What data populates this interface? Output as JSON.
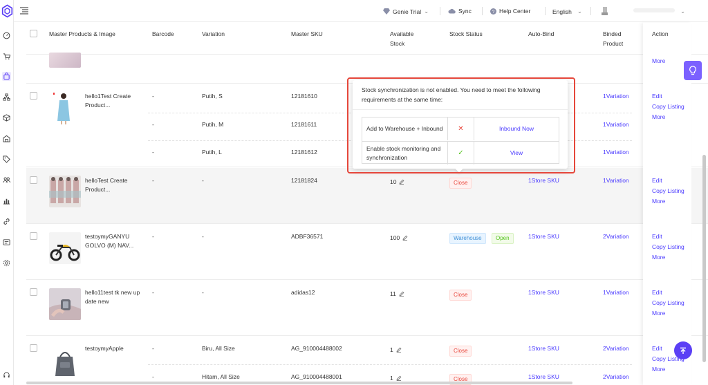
{
  "header": {
    "genie_label": "Genie Trial",
    "sync_label": "Sync",
    "help_label": "Help Center",
    "language": "English"
  },
  "table": {
    "columns": {
      "product": "Master Products & Image",
      "barcode": "Barcode",
      "variation": "Variation",
      "sku": "Master SKU",
      "stock": "Available Stock",
      "status": "Stock Status",
      "autobind": "Auto-Bind",
      "binded": "Binded Product",
      "action": "Action"
    },
    "rows": [
      {
        "name": "hello1Test Create Product...",
        "subs": [
          {
            "barcode": "-",
            "variation": "Putih, S",
            "sku": "12181610",
            "binded": "1Variation"
          },
          {
            "barcode": "-",
            "variation": "Putih, M",
            "sku": "12181611",
            "binded": "1Variation"
          },
          {
            "barcode": "-",
            "variation": "Putih, L",
            "sku": "12181612",
            "binded": "1Variation"
          }
        ]
      },
      {
        "name": "helloTest Create Product...",
        "barcode": "-",
        "variation": "-",
        "sku": "12181824",
        "stock": "10",
        "status1": "Close",
        "autobind": "1Store SKU",
        "binded": "1Variation"
      },
      {
        "name": "testoymyGANYU GOLVO (M) NAV...",
        "barcode": "-",
        "variation": "-",
        "sku": "ADBF36571",
        "stock": "100",
        "status1": "Warehouse",
        "status2": "Open",
        "autobind": "1Store SKU",
        "binded": "2Variation"
      },
      {
        "name": "hello11test tk new up date new",
        "barcode": "-",
        "variation": "-",
        "sku": "adidas12",
        "stock": "11",
        "status1": "Close",
        "autobind": "1Store SKU",
        "binded": "1Variation"
      },
      {
        "name": "testoymyApple",
        "subs": [
          {
            "barcode": "-",
            "variation": "Biru, All Size",
            "sku": "AG_910004488002",
            "stock": "1",
            "status1": "Close",
            "autobind": "1Store SKU",
            "binded": "2Variation"
          },
          {
            "barcode": "-",
            "variation": "Hitam, All Size",
            "sku": "AG_910004488001",
            "stock": "1",
            "status1": "Close",
            "autobind": "1Store SKU",
            "binded": "2Variation"
          }
        ]
      }
    ]
  },
  "actions": {
    "edit": "Edit",
    "copy": "Copy Listing",
    "more": "More"
  },
  "popover": {
    "message": "Stock synchronization is not enabled. You need to meet the following requirements at the same time:",
    "requirements": [
      {
        "label": "Add to Warehouse + Inbound",
        "status": "✕",
        "action": "Inbound Now"
      },
      {
        "label": "Enable stock monitoring and synchronization",
        "status": "✓",
        "action": "View"
      }
    ]
  },
  "colors": {
    "accent": "#4a3aff",
    "danger": "#e9483d",
    "success": "#52c41a",
    "highlight_border": "#e5463a"
  }
}
